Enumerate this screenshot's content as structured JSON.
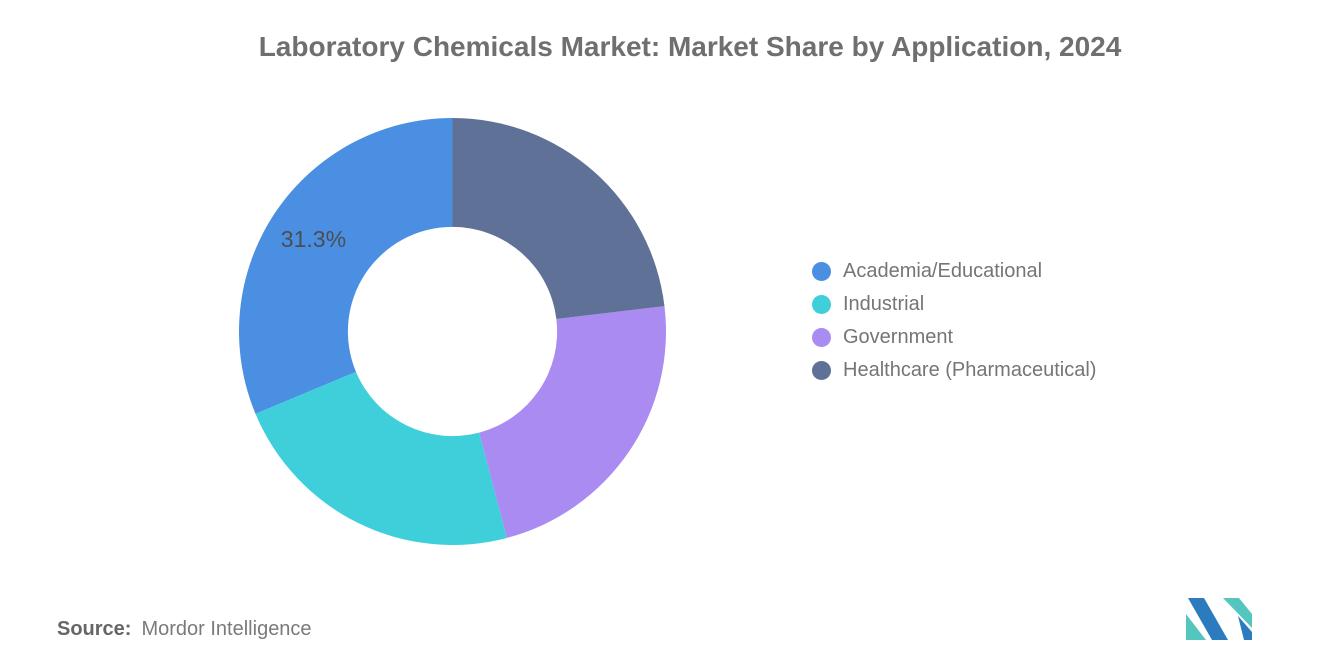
{
  "page": {
    "background": "#FFFFFF"
  },
  "chart_data": {
    "type": "pie",
    "variant": "donut",
    "title": "Laboratory Chemicals Market: Market Share by Application, 2024",
    "start_angle_deg": 0,
    "direction": "counterclockwise",
    "inner_radius_ratio": 0.49,
    "legend_position": "right",
    "series": [
      {
        "label": "Academia/Educational",
        "value": 31.3,
        "color": "#4A8FE2",
        "data_label": "31.3%"
      },
      {
        "label": "Industrial",
        "value": 22.8,
        "color": "#3FCFDA",
        "data_label": ""
      },
      {
        "label": "Government",
        "value": 22.8,
        "color": "#A98BF2",
        "data_label": ""
      },
      {
        "label": "Healthcare (Pharmaceutical)",
        "value": 23.1,
        "color": "#5F7196",
        "data_label": ""
      }
    ],
    "colors": {
      "title_text": "#6F6F6F",
      "legend_text": "#757575",
      "data_label_text": "#4A4E54"
    }
  },
  "footer": {
    "source_label": "Source:",
    "source_value": "Mordor Intelligence"
  },
  "logo": {
    "alt": "mordor-intelligence-logo",
    "blue": "#2B7BBE",
    "teal": "#55C6BE"
  }
}
